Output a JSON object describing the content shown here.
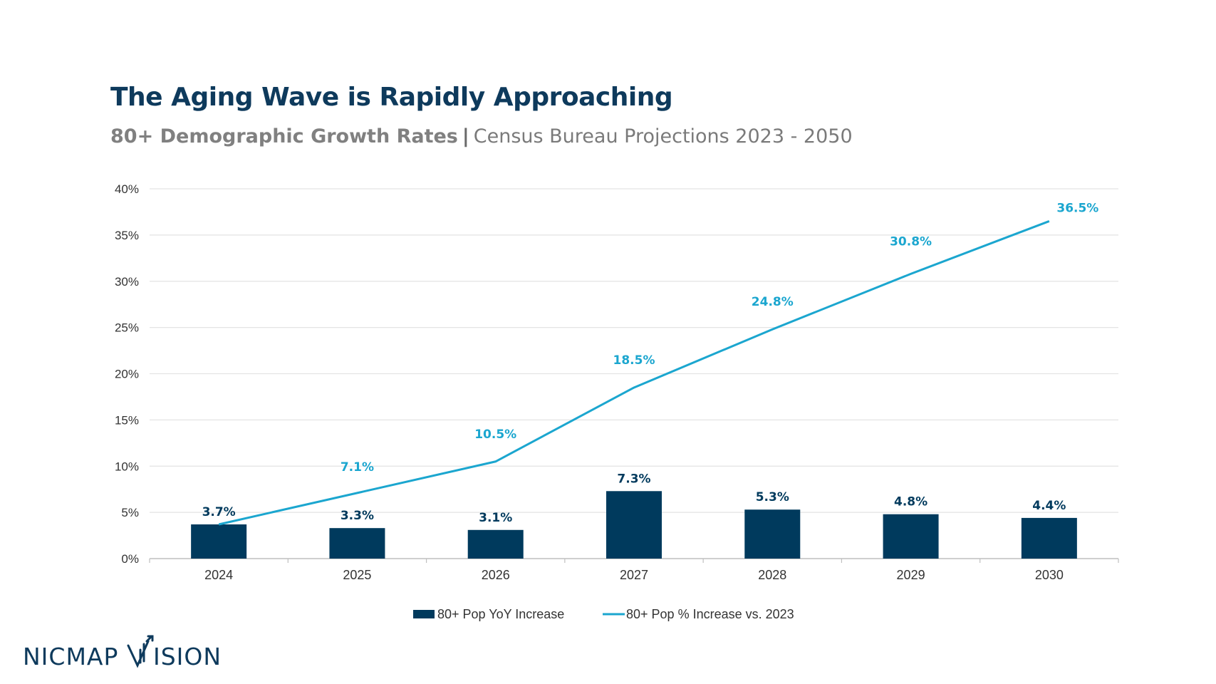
{
  "header": {
    "title": "The Aging Wave is Rapidly Approaching",
    "subtitle_bold": "80+ Demographic Growth Rates",
    "subtitle_sep": "|",
    "subtitle_rest": "Census Bureau Projections 2023 - 2050"
  },
  "logo": {
    "text": "NICMAP VISION",
    "color": "#0e3a5c"
  },
  "colors": {
    "bar": "#003a5d",
    "line": "#1ba6cf",
    "grid": "#e3e3e3",
    "axis_text": "#333333"
  },
  "chart_data": {
    "type": "bar",
    "categories": [
      "2024",
      "2025",
      "2026",
      "2027",
      "2028",
      "2029",
      "2030"
    ],
    "ylim": [
      0,
      40
    ],
    "yticks": [
      "0%",
      "5%",
      "10%",
      "15%",
      "20%",
      "25%",
      "30%",
      "35%",
      "40%"
    ],
    "grid": true,
    "legend_position": "bottom-center",
    "series": [
      {
        "name": "80+ Pop YoY Increase",
        "type": "bar",
        "values": [
          3.7,
          3.3,
          3.1,
          7.3,
          5.3,
          4.8,
          4.4
        ],
        "labels": [
          "3.7%",
          "3.3%",
          "3.1%",
          "7.3%",
          "5.3%",
          "4.8%",
          "4.4%"
        ]
      },
      {
        "name": "80+ Pop % Increase vs. 2023",
        "type": "line",
        "values": [
          3.7,
          7.1,
          10.5,
          18.5,
          24.8,
          30.8,
          36.5
        ],
        "labels": [
          "",
          "7.1%",
          "10.5%",
          "18.5%",
          "24.8%",
          "30.8%",
          "36.5%"
        ]
      }
    ]
  }
}
